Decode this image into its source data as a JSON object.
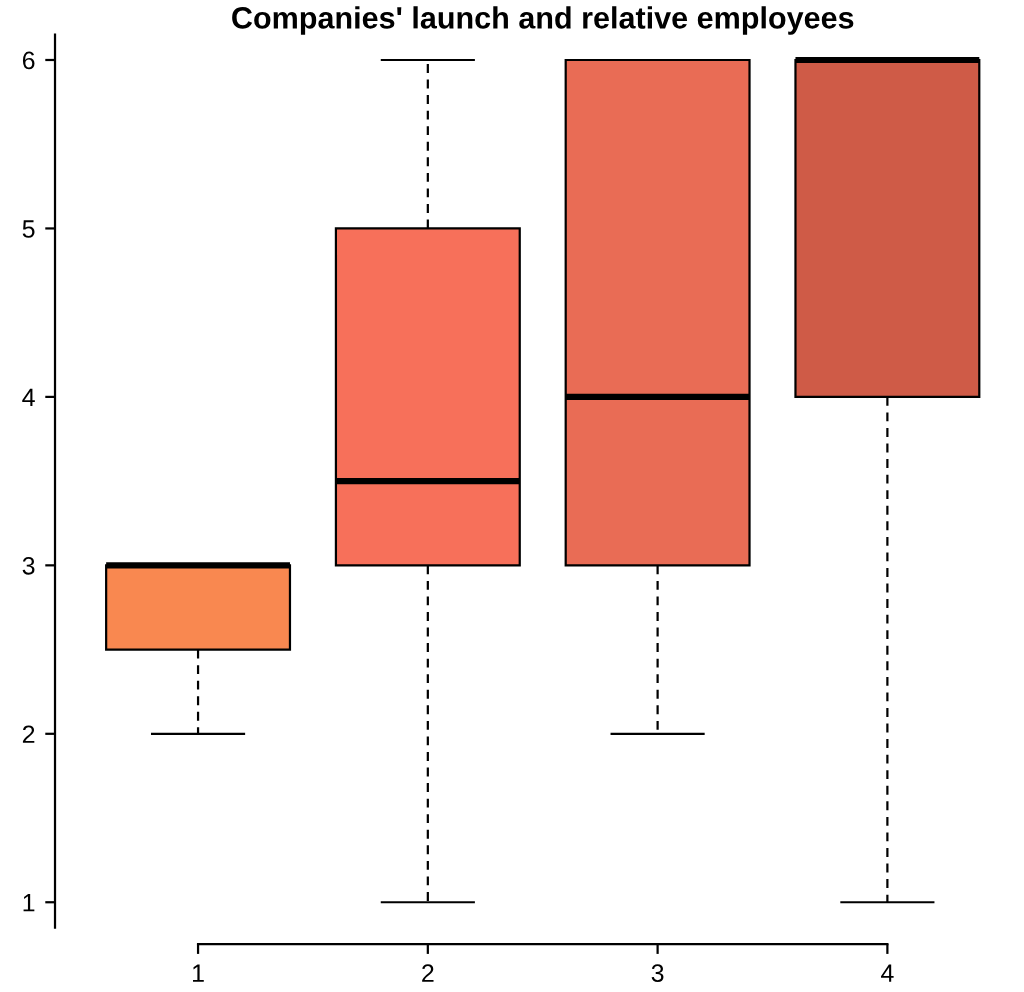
{
  "chart_data": {
    "type": "box",
    "title": "Companies' launch and relative employees",
    "categories": [
      "1",
      "2",
      "3",
      "4"
    ],
    "boxes": [
      {
        "low": 2,
        "q1": 2.5,
        "median": 3,
        "q3": 3,
        "high": 3
      },
      {
        "low": 1,
        "q1": 3,
        "median": 3.5,
        "q3": 5,
        "high": 6
      },
      {
        "low": 2,
        "q1": 3,
        "median": 4,
        "q3": 6,
        "high": 6
      },
      {
        "low": 1,
        "q1": 4,
        "median": 6,
        "q3": 6,
        "high": 6
      }
    ],
    "colors": [
      "#f98850",
      "#f7705a",
      "#e96c55",
      "#cf5b47"
    ],
    "ylim": [
      0.85,
      6.15
    ],
    "yticks": [
      1,
      2,
      3,
      4,
      5,
      6
    ],
    "grid": false
  }
}
